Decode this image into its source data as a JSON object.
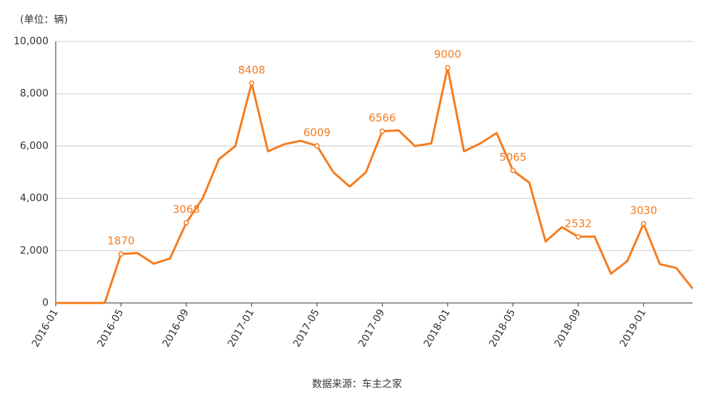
{
  "chart_data": {
    "type": "line",
    "unit_label": "(单位：辆)",
    "source": "数据来源：车主之家",
    "categories": [
      "2016-01",
      null,
      null,
      null,
      "2016-05",
      null,
      null,
      null,
      "2016-09",
      null,
      null,
      null,
      "2017-01",
      null,
      null,
      null,
      "2017-05",
      null,
      null,
      null,
      "2017-09",
      null,
      null,
      null,
      "2018-01",
      null,
      null,
      null,
      "2018-05",
      null,
      null,
      null,
      "2018-09",
      null,
      null,
      null,
      "2019-01",
      null,
      null,
      null
    ],
    "series": [
      {
        "color": "#f57c1f",
        "values": [
          0,
          0,
          0,
          0,
          1870,
          1910,
          1500,
          1700,
          3068,
          4000,
          5500,
          6000,
          8408,
          5800,
          6070,
          6200,
          6009,
          5000,
          4450,
          5000,
          6566,
          6600,
          6000,
          6100,
          9000,
          5800,
          6100,
          6500,
          5065,
          4600,
          2350,
          2900,
          2532,
          2540,
          1120,
          1600,
          3030,
          1480,
          1340,
          550
        ]
      }
    ],
    "ylim": [
      0,
      10000
    ],
    "yticks": [
      0,
      {
        "value": 2000,
        "label": "2,000"
      },
      {
        "value": 4000,
        "label": "4,000"
      },
      {
        "value": 6000,
        "label": "6,000"
      },
      {
        "value": 8000,
        "label": "8,000"
      },
      {
        "value": 10000,
        "label": "10,000"
      }
    ],
    "grid": true
  }
}
